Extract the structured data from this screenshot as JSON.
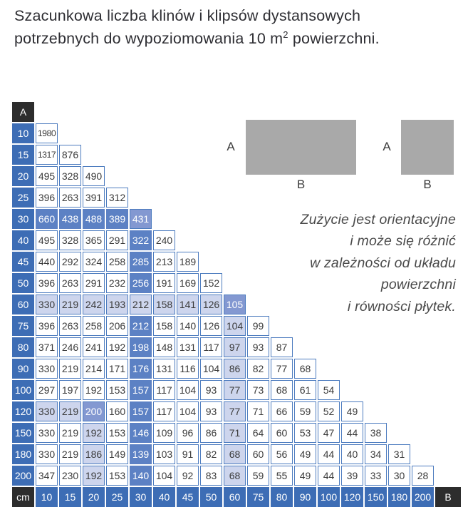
{
  "title": {
    "line1": "Szacunkowa liczba klinów i klipsów dystansowych",
    "line2_pre": "potrzebnych do wypoziomowania 10 m",
    "sup": "2",
    "line2_post": " powierzchni."
  },
  "diagrams": {
    "wide": {
      "side_label": "A",
      "bottom_label": "B"
    },
    "narrow": {
      "side_label": "A",
      "bottom_label": "B"
    }
  },
  "annotation": {
    "lines": [
      "Zużycie jest orientacyjne",
      "i może się różnić",
      "w zależności od układu",
      "powierzchni",
      "i równości płytek."
    ]
  },
  "colors": {
    "header_blue": "#3d6db5",
    "cell_border": "#4d7cbf",
    "highlight_medium": "#5c81c4",
    "highlight_periwinkle": "#8398d1",
    "highlight_light": "#cdd5ed",
    "dark_cell": "#2d2d2d",
    "rect_gray": "#a9a9a9",
    "text_dark": "#3b3b3b",
    "text_title": "#2e2e33",
    "text_annotation": "#4a4a4a"
  },
  "chart_data": {
    "type": "table",
    "title": "Szacunkowa liczba klinów i klipsów dystansowych potrzebnych do wypoziomowania 10 m2 powierzchni.",
    "unit_label": "cm",
    "corner_top": "A",
    "corner_bottom_left": "cm",
    "corner_bottom_right": "B",
    "col_footer": [
      "10",
      "15",
      "20",
      "25",
      "30",
      "40",
      "45",
      "50",
      "60",
      "75",
      "80",
      "90",
      "100",
      "120",
      "150",
      "180",
      "200"
    ],
    "style_legend": {
      "w": "white",
      "m": "medium-blue highlight (white text)",
      "p": "periwinkle highlight (white text)",
      "l": "light-lavender highlight"
    },
    "rows": [
      {
        "h": "10",
        "c": [
          [
            1980,
            "w"
          ]
        ]
      },
      {
        "h": "15",
        "c": [
          [
            1317,
            "w"
          ],
          [
            876,
            "w"
          ]
        ]
      },
      {
        "h": "20",
        "c": [
          [
            495,
            "w"
          ],
          [
            328,
            "w"
          ],
          [
            490,
            "w"
          ]
        ]
      },
      {
        "h": "25",
        "c": [
          [
            396,
            "w"
          ],
          [
            263,
            "w"
          ],
          [
            391,
            "w"
          ],
          [
            312,
            "w"
          ]
        ]
      },
      {
        "h": "30",
        "c": [
          [
            660,
            "m"
          ],
          [
            438,
            "m"
          ],
          [
            488,
            "m"
          ],
          [
            389,
            "m"
          ],
          [
            431,
            "p"
          ]
        ]
      },
      {
        "h": "40",
        "c": [
          [
            495,
            "w"
          ],
          [
            328,
            "w"
          ],
          [
            365,
            "w"
          ],
          [
            291,
            "w"
          ],
          [
            322,
            "m"
          ],
          [
            240,
            "w"
          ]
        ]
      },
      {
        "h": "45",
        "c": [
          [
            440,
            "w"
          ],
          [
            292,
            "w"
          ],
          [
            324,
            "w"
          ],
          [
            258,
            "w"
          ],
          [
            285,
            "m"
          ],
          [
            213,
            "w"
          ],
          [
            189,
            "w"
          ]
        ]
      },
      {
        "h": "50",
        "c": [
          [
            396,
            "w"
          ],
          [
            263,
            "w"
          ],
          [
            291,
            "w"
          ],
          [
            232,
            "w"
          ],
          [
            256,
            "m"
          ],
          [
            191,
            "w"
          ],
          [
            169,
            "w"
          ],
          [
            152,
            "w"
          ]
        ]
      },
      {
        "h": "60",
        "c": [
          [
            330,
            "l"
          ],
          [
            219,
            "l"
          ],
          [
            242,
            "l"
          ],
          [
            193,
            "l"
          ],
          [
            212,
            "l"
          ],
          [
            158,
            "l"
          ],
          [
            141,
            "l"
          ],
          [
            126,
            "l"
          ],
          [
            105,
            "p"
          ]
        ]
      },
      {
        "h": "75",
        "c": [
          [
            396,
            "w"
          ],
          [
            263,
            "w"
          ],
          [
            258,
            "w"
          ],
          [
            206,
            "w"
          ],
          [
            212,
            "m"
          ],
          [
            158,
            "w"
          ],
          [
            140,
            "w"
          ],
          [
            126,
            "w"
          ],
          [
            104,
            "l"
          ],
          [
            99,
            "w"
          ]
        ]
      },
      {
        "h": "80",
        "c": [
          [
            371,
            "w"
          ],
          [
            246,
            "w"
          ],
          [
            241,
            "w"
          ],
          [
            192,
            "w"
          ],
          [
            198,
            "m"
          ],
          [
            148,
            "w"
          ],
          [
            131,
            "w"
          ],
          [
            117,
            "w"
          ],
          [
            97,
            "l"
          ],
          [
            93,
            "w"
          ],
          [
            87,
            "w"
          ]
        ]
      },
      {
        "h": "90",
        "c": [
          [
            330,
            "w"
          ],
          [
            219,
            "w"
          ],
          [
            214,
            "w"
          ],
          [
            171,
            "w"
          ],
          [
            176,
            "m"
          ],
          [
            131,
            "w"
          ],
          [
            116,
            "w"
          ],
          [
            104,
            "w"
          ],
          [
            86,
            "l"
          ],
          [
            82,
            "w"
          ],
          [
            77,
            "w"
          ],
          [
            68,
            "w"
          ]
        ]
      },
      {
        "h": "100",
        "c": [
          [
            297,
            "w"
          ],
          [
            197,
            "w"
          ],
          [
            192,
            "w"
          ],
          [
            153,
            "w"
          ],
          [
            157,
            "m"
          ],
          [
            117,
            "w"
          ],
          [
            104,
            "w"
          ],
          [
            93,
            "w"
          ],
          [
            77,
            "l"
          ],
          [
            73,
            "w"
          ],
          [
            68,
            "w"
          ],
          [
            61,
            "w"
          ],
          [
            54,
            "w"
          ]
        ]
      },
      {
        "h": "120",
        "c": [
          [
            330,
            "l"
          ],
          [
            219,
            "l"
          ],
          [
            200,
            "p"
          ],
          [
            160,
            "w"
          ],
          [
            157,
            "m"
          ],
          [
            117,
            "w"
          ],
          [
            104,
            "w"
          ],
          [
            93,
            "w"
          ],
          [
            77,
            "l"
          ],
          [
            71,
            "w"
          ],
          [
            66,
            "w"
          ],
          [
            59,
            "w"
          ],
          [
            52,
            "w"
          ],
          [
            49,
            "w"
          ]
        ]
      },
      {
        "h": "150",
        "c": [
          [
            330,
            "w"
          ],
          [
            219,
            "w"
          ],
          [
            192,
            "l"
          ],
          [
            153,
            "w"
          ],
          [
            146,
            "m"
          ],
          [
            109,
            "w"
          ],
          [
            96,
            "w"
          ],
          [
            86,
            "w"
          ],
          [
            71,
            "l"
          ],
          [
            64,
            "w"
          ],
          [
            60,
            "w"
          ],
          [
            53,
            "w"
          ],
          [
            47,
            "w"
          ],
          [
            44,
            "w"
          ],
          [
            38,
            "w"
          ]
        ]
      },
      {
        "h": "180",
        "c": [
          [
            330,
            "w"
          ],
          [
            219,
            "w"
          ],
          [
            186,
            "l"
          ],
          [
            149,
            "w"
          ],
          [
            139,
            "m"
          ],
          [
            103,
            "w"
          ],
          [
            91,
            "w"
          ],
          [
            82,
            "w"
          ],
          [
            68,
            "l"
          ],
          [
            60,
            "w"
          ],
          [
            56,
            "w"
          ],
          [
            49,
            "w"
          ],
          [
            44,
            "w"
          ],
          [
            40,
            "w"
          ],
          [
            34,
            "w"
          ],
          [
            31,
            "w"
          ]
        ]
      },
      {
        "h": "200",
        "c": [
          [
            347,
            "w"
          ],
          [
            230,
            "w"
          ],
          [
            192,
            "l"
          ],
          [
            153,
            "w"
          ],
          [
            140,
            "m"
          ],
          [
            104,
            "w"
          ],
          [
            92,
            "w"
          ],
          [
            83,
            "w"
          ],
          [
            68,
            "l"
          ],
          [
            59,
            "w"
          ],
          [
            55,
            "w"
          ],
          [
            49,
            "w"
          ],
          [
            44,
            "w"
          ],
          [
            39,
            "w"
          ],
          [
            33,
            "w"
          ],
          [
            30,
            "w"
          ],
          [
            28,
            "w"
          ]
        ]
      }
    ]
  }
}
